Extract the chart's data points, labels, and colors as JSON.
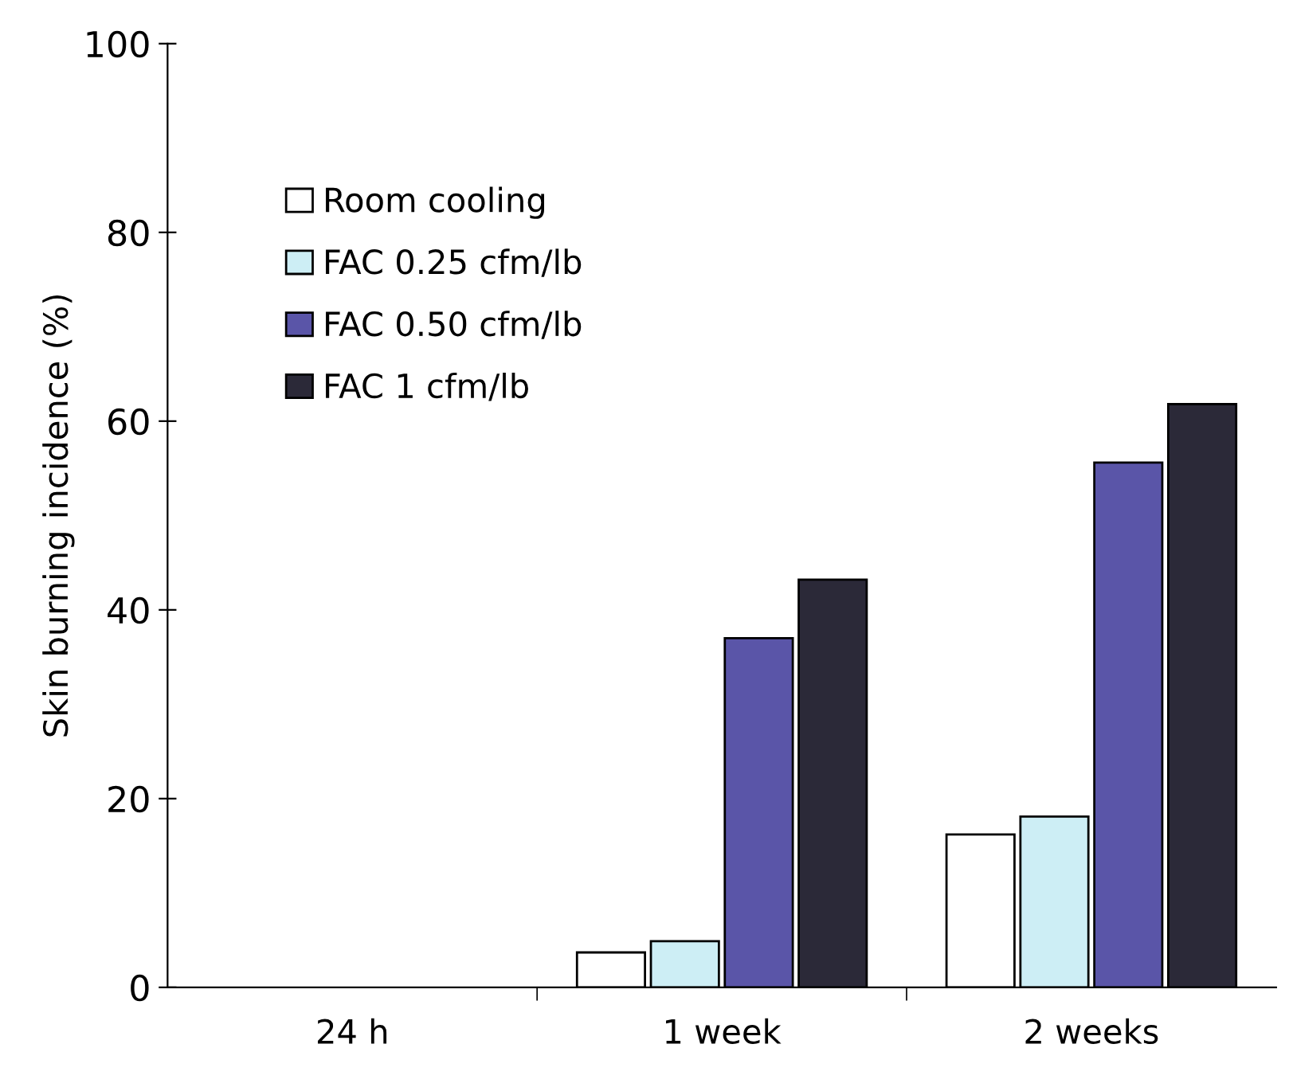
{
  "chart_data": {
    "type": "bar",
    "ylabel": "Skin burning incidence (%)",
    "categories": [
      "24 h",
      "1 week",
      "2 weeks"
    ],
    "series": [
      {
        "name": "Room cooling",
        "color": "#ffffff",
        "values": [
          0,
          3.7,
          16.2
        ]
      },
      {
        "name": "FAC 0.25 cfm/lb",
        "color": "#cdeef5",
        "values": [
          0,
          4.9,
          18.1
        ]
      },
      {
        "name": "FAC 0.50 cfm/lb",
        "color": "#5a55a8",
        "values": [
          0,
          37,
          55.6
        ]
      },
      {
        "name": "FAC 1 cfm/lb",
        "color": "#2b2938",
        "values": [
          0,
          43.2,
          61.8
        ]
      }
    ],
    "ylim": [
      0,
      100
    ],
    "yticks": [
      0,
      20,
      40,
      60,
      80,
      100
    ],
    "grid": false,
    "legend": "top left"
  }
}
